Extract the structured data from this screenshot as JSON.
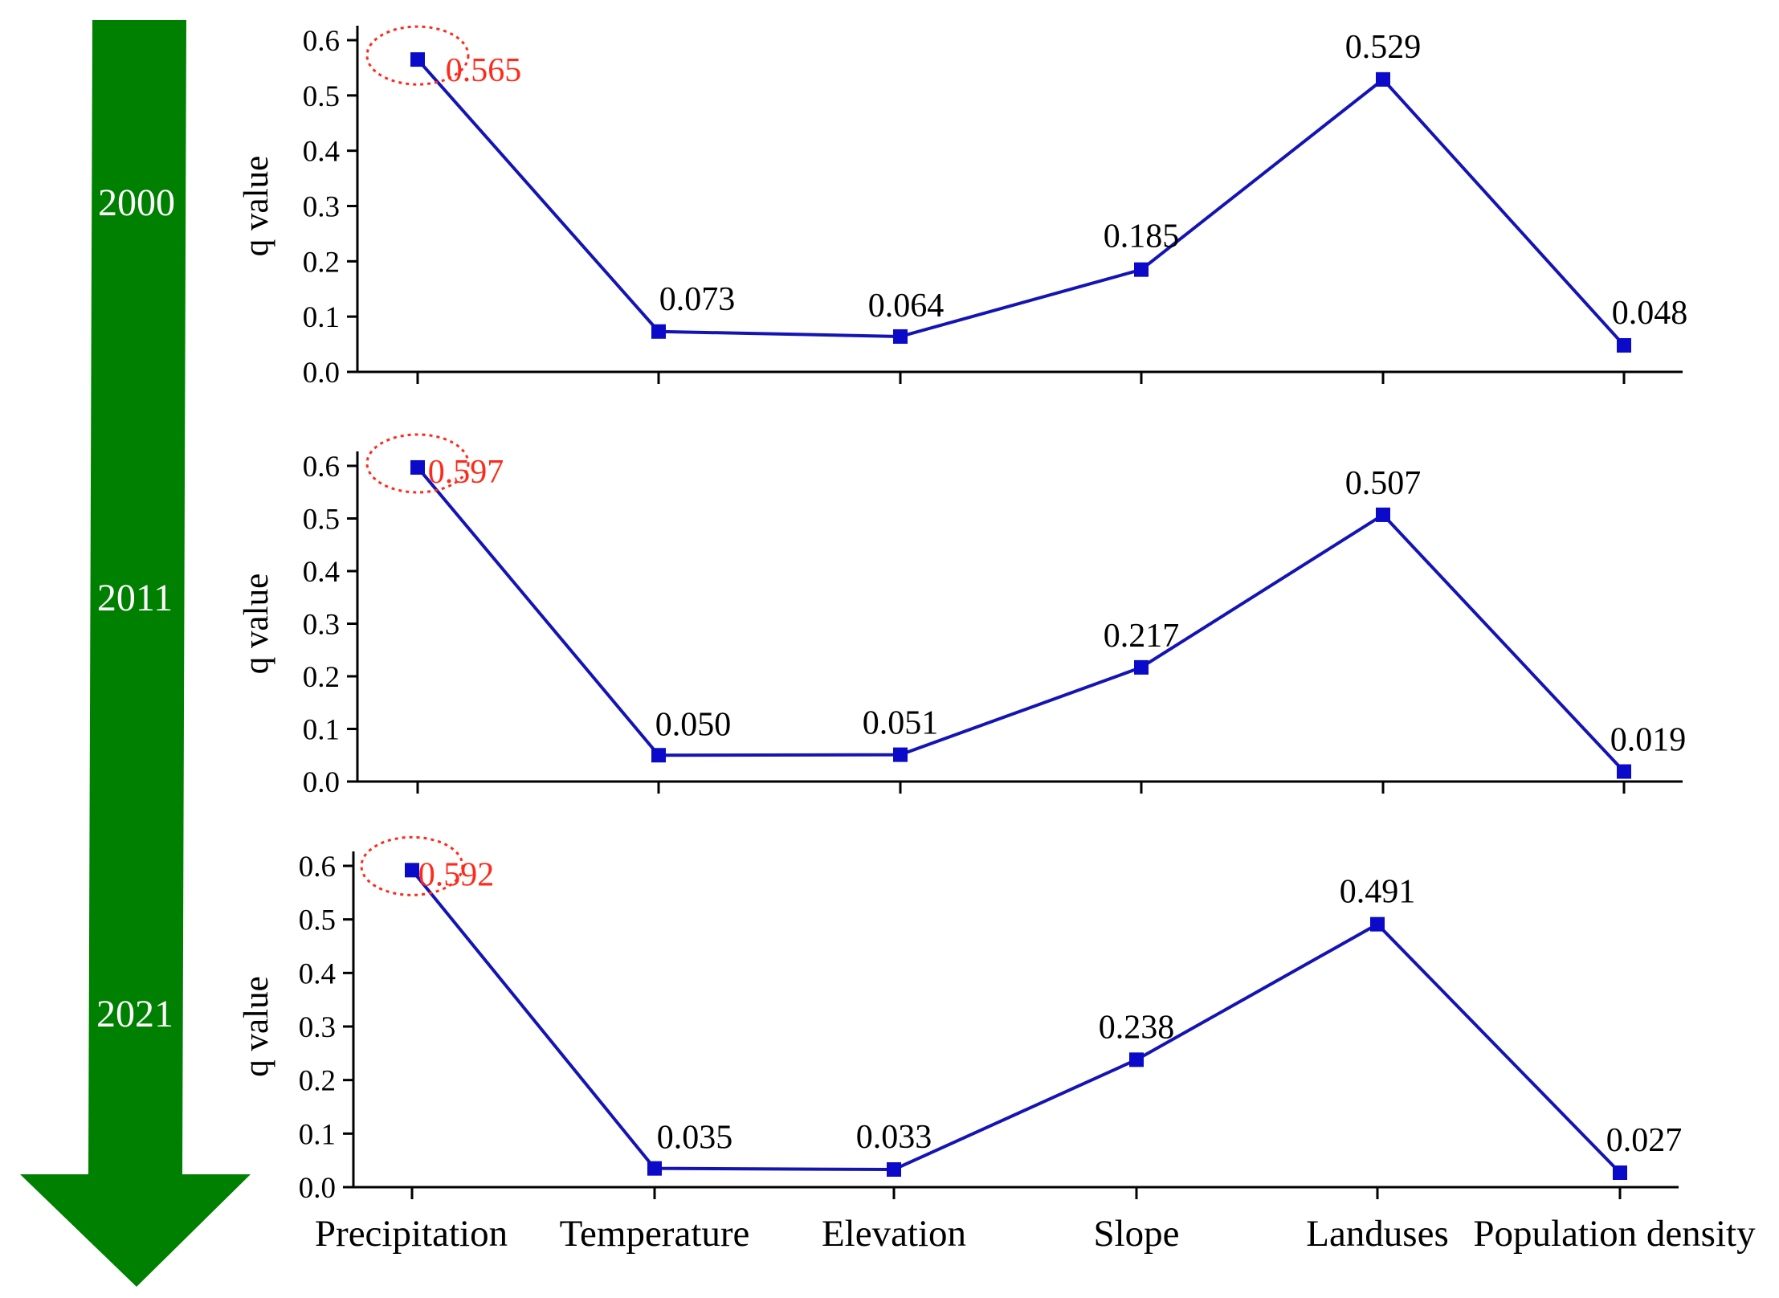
{
  "arrow": {
    "color": "#008000",
    "years": [
      "2000",
      "2011",
      "2021"
    ]
  },
  "colors": {
    "line": "#1414b4",
    "marker": "#0a0ac8",
    "highlight": "#ff2a1a",
    "axis": "#000000"
  },
  "chart_data": [
    {
      "type": "line",
      "year": "2000",
      "categories": [
        "Precipitation",
        "Temperature",
        "Elevation",
        "Slope",
        "Landuses",
        "Population density"
      ],
      "values": [
        0.565,
        0.073,
        0.064,
        0.185,
        0.529,
        0.048
      ],
      "labels": [
        "0.565",
        "0.073",
        "0.064",
        "0.185",
        "0.529",
        "0.048"
      ],
      "highlight_index": 0,
      "ylabel": "q value",
      "ylim": [
        0,
        0.6
      ],
      "yticks": [
        "0.0",
        "0.1",
        "0.2",
        "0.3",
        "0.4",
        "0.5",
        "0.6"
      ]
    },
    {
      "type": "line",
      "year": "2011",
      "categories": [
        "Precipitation",
        "Temperature",
        "Elevation",
        "Slope",
        "Landuses",
        "Population density"
      ],
      "values": [
        0.597,
        0.05,
        0.051,
        0.217,
        0.507,
        0.019
      ],
      "labels": [
        "0.597",
        "0.050",
        "0.051",
        "0.217",
        "0.507",
        "0.019"
      ],
      "highlight_index": 0,
      "ylabel": "q value",
      "ylim": [
        0,
        0.6
      ],
      "yticks": [
        "0.0",
        "0.1",
        "0.2",
        "0.3",
        "0.4",
        "0.5",
        "0.6"
      ]
    },
    {
      "type": "line",
      "year": "2021",
      "categories": [
        "Precipitation",
        "Temperature",
        "Elevation",
        "Slope",
        "Landuses",
        "Population density"
      ],
      "values": [
        0.592,
        0.035,
        0.033,
        0.238,
        0.491,
        0.027
      ],
      "labels": [
        "0.592",
        "0.035",
        "0.033",
        "0.238",
        "0.491",
        "0.027"
      ],
      "highlight_index": 0,
      "ylabel": "q value",
      "ylim": [
        0,
        0.6
      ],
      "yticks": [
        "0.0",
        "0.1",
        "0.2",
        "0.3",
        "0.4",
        "0.5",
        "0.6"
      ],
      "show_category_labels": true
    }
  ]
}
